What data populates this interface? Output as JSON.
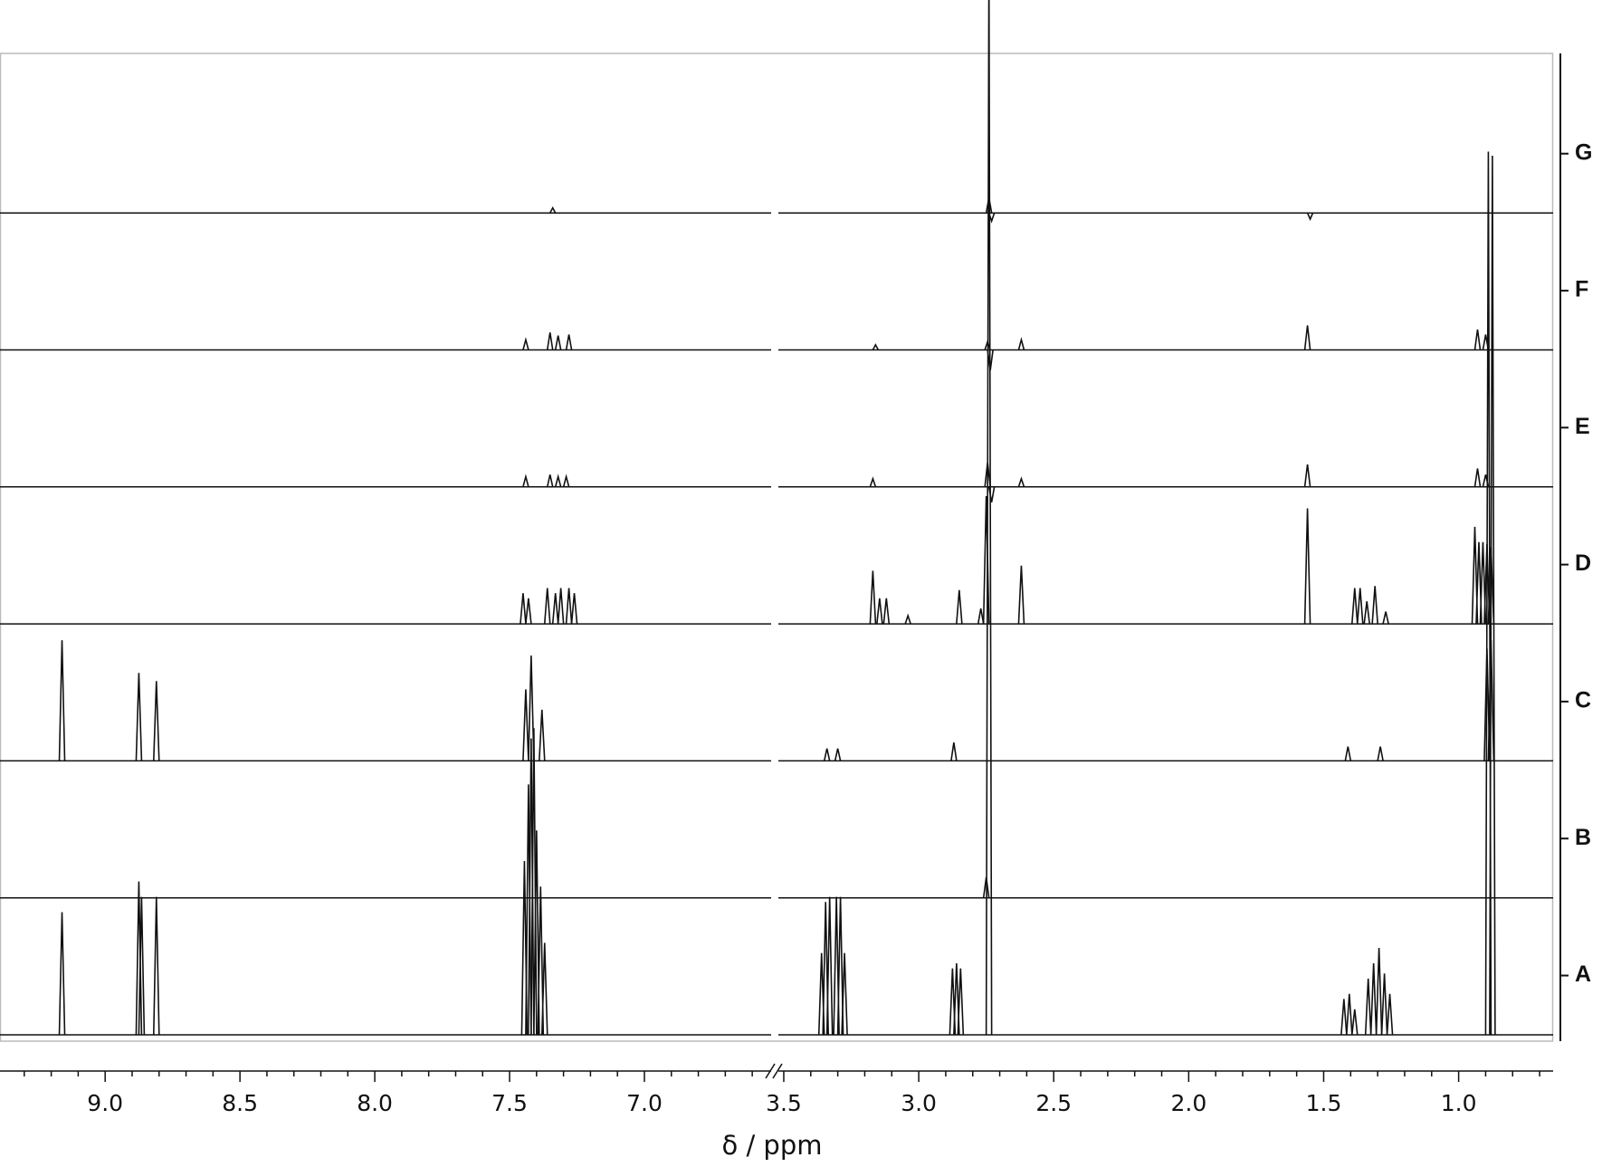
{
  "chart_data": {
    "type": "spectrum",
    "x_label": "δ / ppm",
    "xlim": [
      [
        9.39,
        6.53
      ],
      [
        3.52,
        0.65
      ]
    ],
    "xticks": [
      {
        "value": 9,
        "label": "9.0"
      },
      8.5,
      {
        "value": 8,
        "label": "8.0"
      },
      7.5,
      {
        "value": 7,
        "label": "7.0"
      },
      3.5,
      {
        "value": 3,
        "label": "3.0"
      },
      2.5,
      {
        "value": 2,
        "label": "2.0"
      },
      1.5,
      {
        "value": 1,
        "label": "1.0"
      }
    ],
    "xminorticks": [
      9.3,
      9.2,
      9.1,
      8.9,
      8.8,
      8.7,
      8.6,
      8.4,
      8.3,
      8.2,
      8.1,
      7.9,
      7.8,
      7.7,
      7.6,
      7.4,
      7.3,
      7.2,
      7.1,
      6.9,
      6.8,
      6.7,
      6.6,
      3.4,
      3.3,
      3.2,
      3.1,
      2.9,
      2.8,
      2.7,
      2.6,
      2.4,
      2.3,
      2.2,
      2.1,
      1.9,
      1.8,
      1.7,
      1.6,
      1.4,
      1.3,
      1.2,
      1.1,
      0.9,
      0.8,
      0.7
    ],
    "color": "#111111",
    "series": [
      {
        "name": "A",
        "x": [
          9.16,
          8.875,
          8.865,
          8.81,
          7.445,
          7.43,
          7.42,
          7.41,
          7.4,
          7.385,
          7.37,
          3.36,
          3.345,
          3.33,
          3.305,
          3.29,
          3.275,
          2.875,
          2.86,
          2.845,
          2.74,
          1.425,
          1.405,
          1.385,
          1.335,
          1.315,
          1.295,
          1.275,
          1.255,
          0.89,
          0.875
        ],
        "values": [
          120,
          150,
          135,
          135,
          170,
          245,
          290,
          300,
          200,
          145,
          90,
          80,
          130,
          135,
          135,
          135,
          80,
          65,
          70,
          65,
          1050,
          35,
          40,
          25,
          55,
          70,
          85,
          60,
          40,
          864,
          860
        ]
      },
      {
        "name": "B",
        "x": [
          2.75
        ],
        "values": [
          20
        ]
      },
      {
        "name": "C",
        "x": [
          9.16,
          8.875,
          8.81,
          7.44,
          7.42,
          7.38,
          3.34,
          3.3,
          2.87,
          1.41,
          1.29,
          0.895,
          0.88
        ],
        "values": [
          118,
          86,
          78,
          70,
          103,
          50,
          12,
          12,
          18,
          14,
          14,
          110,
          118
        ]
      },
      {
        "name": "D",
        "x": [
          7.45,
          7.43,
          7.36,
          7.33,
          7.31,
          7.28,
          7.26,
          3.17,
          3.145,
          3.12,
          3.04,
          2.85,
          2.77,
          2.75,
          2.62,
          1.56,
          1.385,
          1.365,
          1.34,
          1.31,
          1.27,
          0.94,
          0.925,
          0.91,
          0.895,
          0.88
        ],
        "values": [
          30,
          25,
          35,
          30,
          35,
          35,
          30,
          52,
          25,
          25,
          8,
          33,
          15,
          125,
          57,
          113,
          35,
          35,
          22,
          37,
          12,
          95,
          80,
          80,
          78,
          75
        ]
      },
      {
        "name": "E",
        "x": [
          7.44,
          7.35,
          7.32,
          7.29,
          3.17,
          2.745,
          2.73,
          2.62,
          1.56,
          0.93,
          0.9
        ],
        "values": [
          10,
          12,
          10,
          10,
          8,
          24,
          -15,
          8,
          22,
          18,
          12
        ]
      },
      {
        "name": "F",
        "x": [
          7.44,
          7.35,
          7.32,
          7.28,
          3.16,
          2.745,
          2.735,
          2.62,
          1.56,
          0.93,
          0.9
        ],
        "values": [
          10,
          17,
          14,
          15,
          5,
          8,
          -20,
          10,
          24,
          20,
          15
        ]
      },
      {
        "name": "G",
        "x": [
          7.34,
          2.74,
          2.73,
          1.55
        ],
        "values": [
          5,
          15,
          -8,
          -6
        ]
      }
    ]
  }
}
